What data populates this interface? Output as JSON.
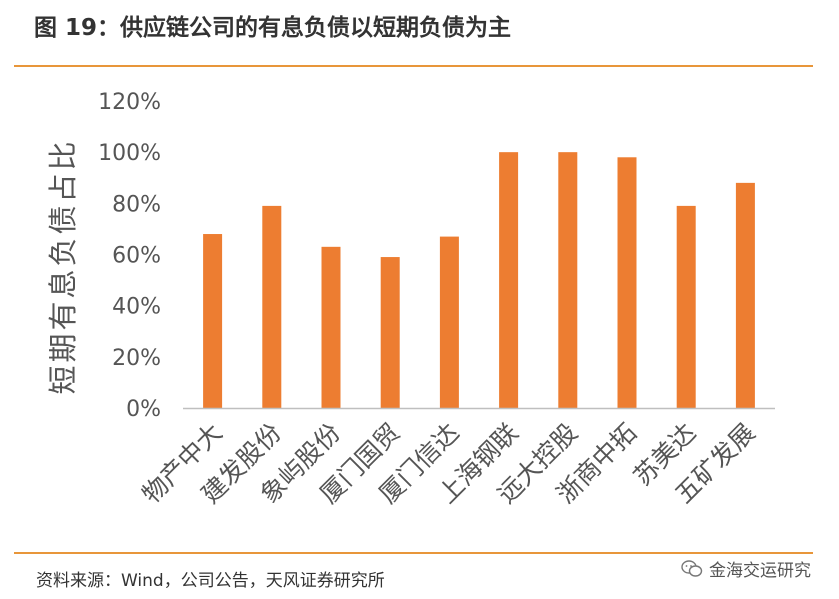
{
  "header": {
    "title": "图 19：供应链公司的有息负债以短期负债为主"
  },
  "footer": {
    "source": "资料来源：Wind，公司公告，天风证券研究所",
    "watermark": "金海交运研究"
  },
  "colors": {
    "bar": "#ed7d31",
    "rule": "#e8963a",
    "axis": "#bfbfbf"
  },
  "icons": {
    "watermark": "wechat-icon"
  },
  "chart_data": {
    "type": "bar",
    "title": "",
    "xlabel": "",
    "ylabel": "短期有息负债占比",
    "ylim": [
      0,
      120
    ],
    "yticks": [
      "0%",
      "20%",
      "40%",
      "60%",
      "80%",
      "100%",
      "120%"
    ],
    "grid": false,
    "categories": [
      "物产中大",
      "建发股份",
      "象屿股份",
      "厦门国贸",
      "厦门信达",
      "上海钢联",
      "远大控股",
      "浙商中拓",
      "苏美达",
      "五矿发展"
    ],
    "values": [
      68,
      79,
      63,
      59,
      67,
      100,
      100,
      98,
      79,
      88
    ]
  }
}
